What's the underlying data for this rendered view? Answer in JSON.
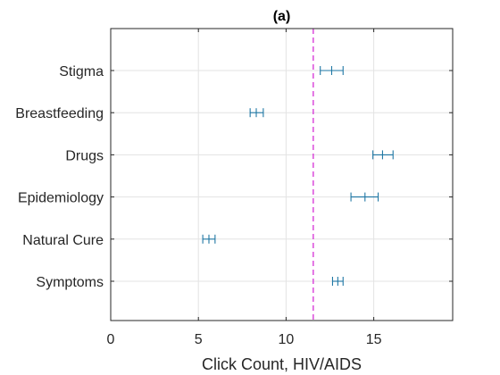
{
  "chart_data": {
    "type": "errorbar",
    "title": "(a)",
    "xlabel": "Click Count, HIV/AIDS",
    "ylabel": "",
    "xlim": [
      0,
      19.5
    ],
    "xticks": [
      0,
      5,
      10,
      15
    ],
    "xtick_labels": [
      "0",
      "5",
      "10",
      "15"
    ],
    "categories": [
      "Stigma",
      "Breastfeeding",
      "Drugs",
      "Epidemiology",
      "Natural Cure",
      "Symptoms"
    ],
    "series": [
      {
        "values": [
          12.6,
          8.3,
          15.5,
          14.5,
          5.6,
          12.95
        ],
        "lower": [
          11.95,
          7.95,
          14.95,
          13.7,
          5.25,
          12.65
        ],
        "upper": [
          13.25,
          8.7,
          16.1,
          15.25,
          5.95,
          13.25
        ]
      }
    ],
    "reference_line": {
      "x": 11.55,
      "style": "dashed",
      "color": "#d62fd6"
    },
    "grid": true,
    "colors": {
      "errorbar": "#1f77a4",
      "grid": "#e3e3e3",
      "axes": "#262626"
    }
  }
}
